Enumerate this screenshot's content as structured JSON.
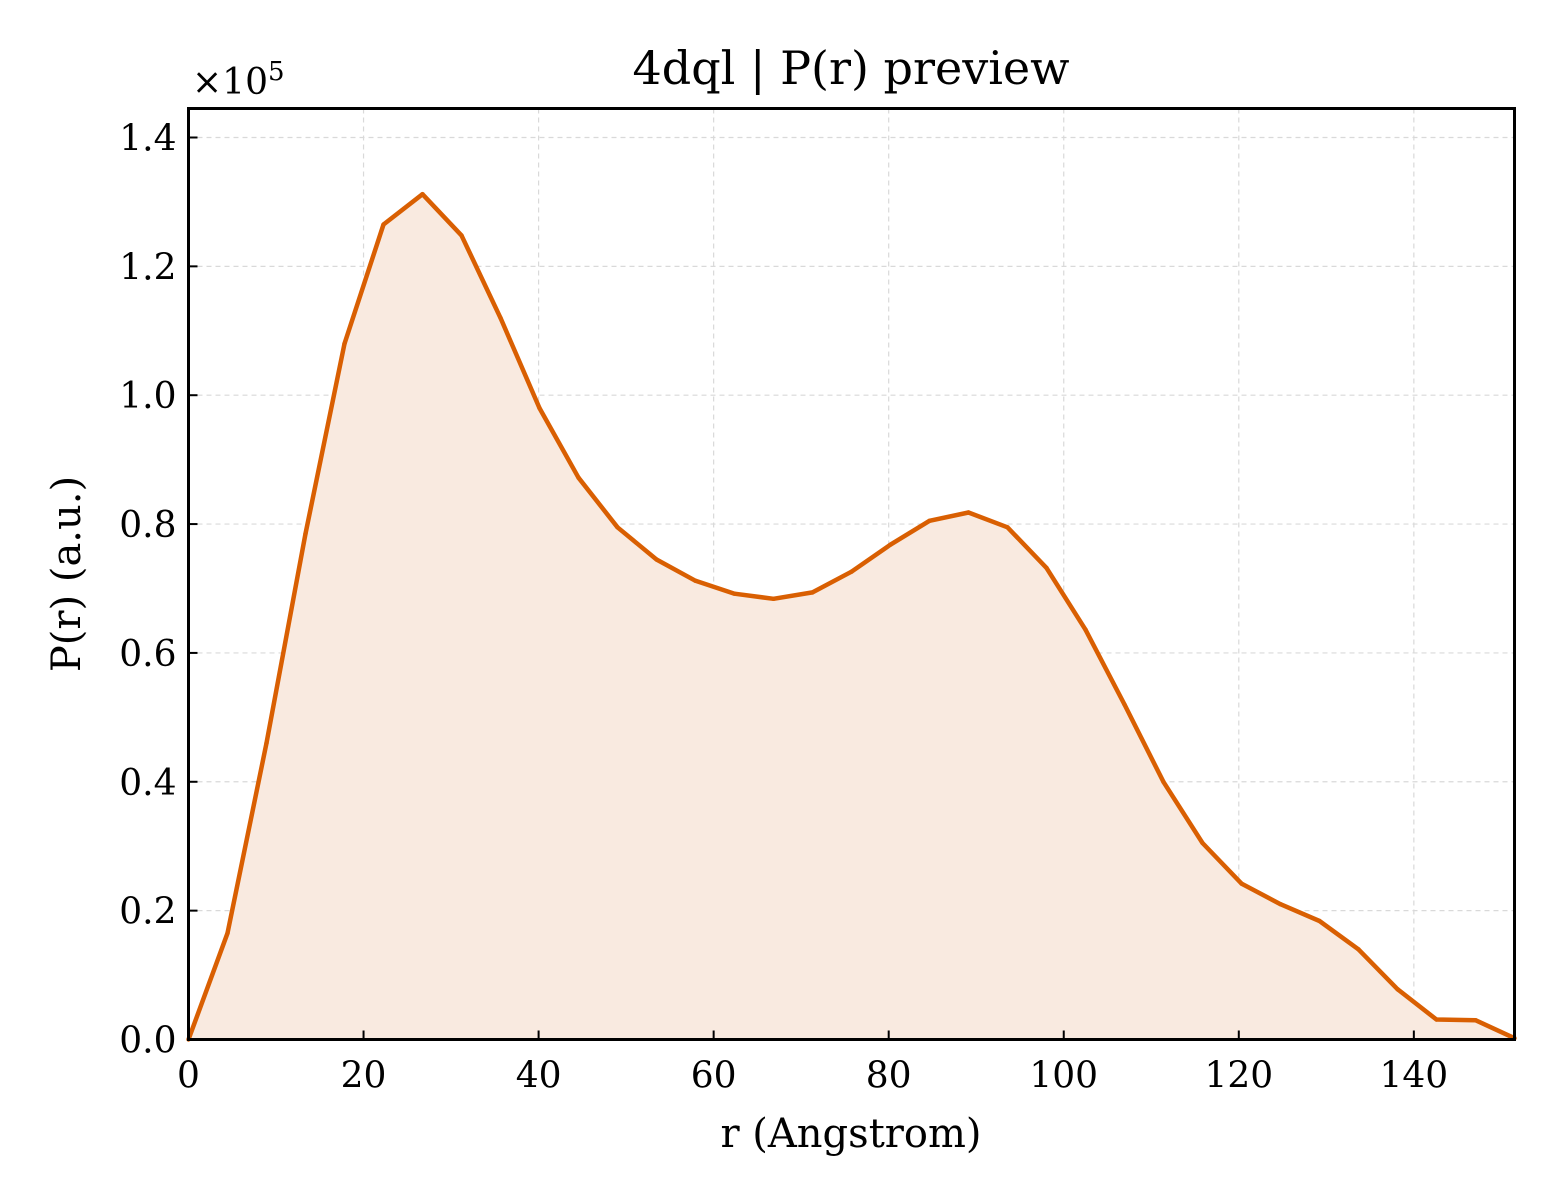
{
  "chart_data": {
    "type": "area",
    "title": "4dql | P(r) preview",
    "xlabel": "r (Angstrom)",
    "ylabel": "P(r) (a.u.)",
    "y_multiplier": {
      "base": "×10",
      "exponent": "5"
    },
    "xlim": [
      0,
      151.5
    ],
    "ylim": [
      0,
      1.445
    ],
    "x_ticks": [
      0,
      20,
      40,
      60,
      80,
      100,
      120,
      140
    ],
    "x_tick_labels": [
      "0",
      "20",
      "40",
      "60",
      "80",
      "100",
      "120",
      "140"
    ],
    "y_ticks": [
      0.0,
      0.2,
      0.4,
      0.6,
      0.8,
      1.0,
      1.2,
      1.4
    ],
    "y_tick_labels": [
      "0.0",
      "0.2",
      "0.4",
      "0.6",
      "0.8",
      "1.0",
      "1.2",
      "1.4"
    ],
    "grid": true,
    "series": [
      {
        "color": "#d95f02",
        "fill_color": "#f9eae0",
        "x": [
          0,
          4.46,
          8.91,
          13.37,
          17.82,
          22.28,
          26.74,
          31.19,
          35.65,
          40.1,
          44.56,
          49.01,
          53.47,
          57.93,
          62.38,
          66.84,
          71.29,
          75.75,
          80.2,
          84.66,
          89.12,
          93.57,
          98.03,
          102.48,
          106.94,
          111.39,
          115.85,
          120.31,
          124.76,
          129.22,
          133.67,
          138.13,
          142.58,
          147.04,
          151.5
        ],
        "y": [
          0.0,
          0.165,
          0.46,
          0.785,
          1.08,
          1.265,
          1.312,
          1.248,
          1.12,
          0.98,
          0.872,
          0.795,
          0.745,
          0.712,
          0.692,
          0.684,
          0.694,
          0.726,
          0.768,
          0.805,
          0.818,
          0.795,
          0.732,
          0.636,
          0.52,
          0.4,
          0.305,
          0.242,
          0.21,
          0.184,
          0.14,
          0.078,
          0.031,
          0.03,
          0.002
        ]
      }
    ]
  }
}
